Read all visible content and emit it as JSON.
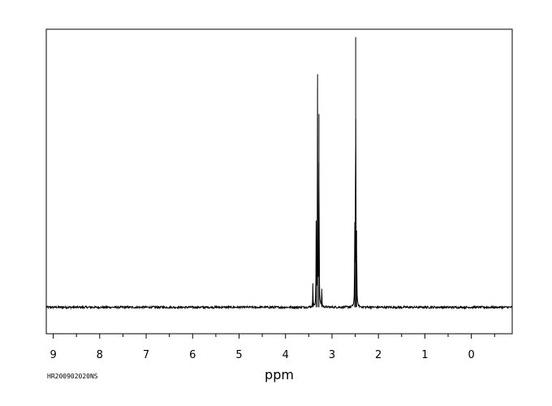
{
  "chart_data": {
    "type": "line",
    "title": "",
    "xlabel": "ppm",
    "ylabel": "",
    "xlim": [
      9.15,
      -0.88
    ],
    "ylim": [
      -0.1,
      1.05
    ],
    "x_reversed": true,
    "x_ticks": [
      9,
      8,
      7,
      6,
      5,
      4,
      3,
      2,
      1,
      0
    ],
    "tick_labels": [
      "9",
      "8",
      "7",
      "6",
      "5",
      "4",
      "3",
      "2",
      "1",
      "0"
    ],
    "grid": false,
    "baseline": 0.0,
    "peaks": [
      {
        "x": 3.41,
        "height": 0.09
      },
      {
        "x": 3.34,
        "height": 0.31
      },
      {
        "x": 3.31,
        "height": 0.88
      },
      {
        "x": 3.28,
        "height": 0.73
      },
      {
        "x": 3.22,
        "height": 0.07
      },
      {
        "x": 2.51,
        "height": 0.3
      },
      {
        "x": 2.49,
        "height": 1.02
      },
      {
        "x": 2.47,
        "height": 0.29
      }
    ],
    "series": [
      {
        "values_note": "",
        "color": "#000000"
      }
    ]
  },
  "footer": {
    "sample_id": "HR200902020NS"
  }
}
